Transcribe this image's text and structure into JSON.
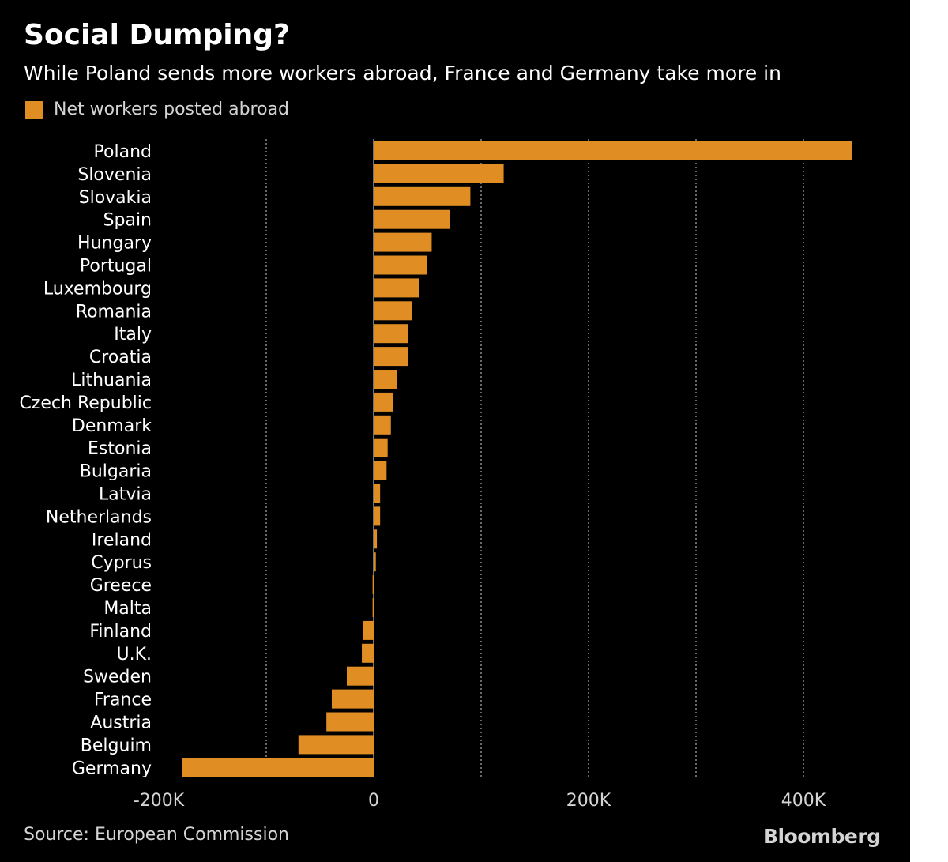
{
  "colors": {
    "background": "#000000",
    "bar": "#e08e24",
    "grid": "#8a8a8a",
    "text": "#ffffff",
    "muted": "#d4d4d4"
  },
  "header": {
    "title": "Social Dumping?",
    "subtitle": "While Poland sends more workers abroad, France and Germany take more in"
  },
  "footer": {
    "source": "Source: European Commission",
    "brand": "Bloomberg"
  },
  "chart_data": {
    "type": "bar",
    "orientation": "horizontal",
    "title": "Social Dumping?",
    "subtitle": "While Poland sends more workers abroad, France and Germany take more in",
    "legend": [
      "Net workers posted abroad"
    ],
    "legend_position": "top-left",
    "categories": [
      "Poland",
      "Slovenia",
      "Slovakia",
      "Spain",
      "Hungary",
      "Portugal",
      "Luxembourg",
      "Romania",
      "Italy",
      "Croatia",
      "Lithuania",
      "Czech Republic",
      "Denmark",
      "Estonia",
      "Bulgaria",
      "Latvia",
      "Netherlands",
      "Ireland",
      "Cyprus",
      "Greece",
      "Malta",
      "Finland",
      "U.K.",
      "Sweden",
      "France",
      "Austria",
      "Belguim",
      "Germany"
    ],
    "series": [
      {
        "name": "Net workers posted abroad",
        "values": [
          445000,
          121000,
          90000,
          71000,
          54000,
          50000,
          42000,
          36000,
          32000,
          32000,
          22000,
          18000,
          16000,
          13000,
          12000,
          6000,
          6000,
          3000,
          2000,
          -1000,
          -1000,
          -10000,
          -11000,
          -25000,
          -39000,
          -44000,
          -70000,
          -178000
        ]
      }
    ],
    "xlim": [
      -200000,
      440000
    ],
    "xticks": [
      -200000,
      0,
      200000,
      400000
    ],
    "xtick_labels": [
      "-200K",
      "0",
      "200K",
      "400K"
    ],
    "grid": true
  }
}
